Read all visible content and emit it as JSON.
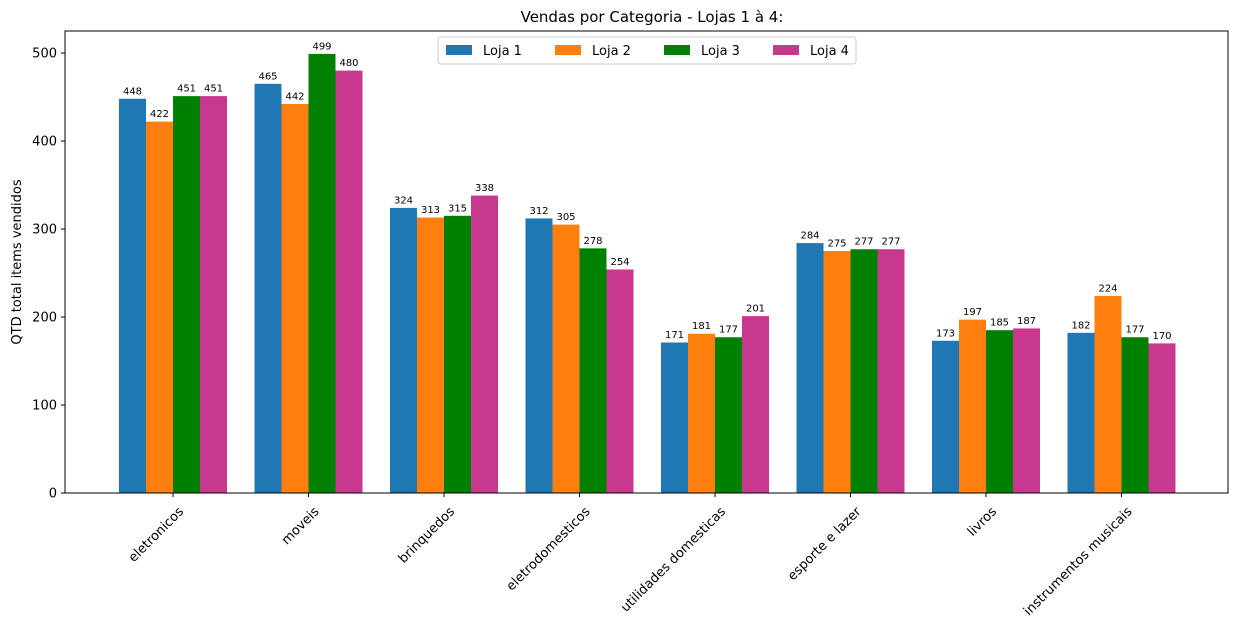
{
  "chart_data": {
    "type": "bar",
    "title": "Vendas por Categoria - Lojas 1 à 4:",
    "xlabel": "",
    "ylabel": "QTD total items vendidos",
    "ylim": [
      0,
      525
    ],
    "yticks": [
      0,
      100,
      200,
      300,
      400,
      500
    ],
    "grid": false,
    "legend_position": "top-center",
    "categories": [
      "eletronicos",
      "moveis",
      "brinquedos",
      "eletrodomesticos",
      "utilidades domesticas",
      "esporte e lazer",
      "livros",
      "instrumentos musicais"
    ],
    "series": [
      {
        "name": "Loja 1",
        "color": "#1f77b4",
        "values": [
          448,
          465,
          324,
          312,
          171,
          284,
          173,
          182
        ]
      },
      {
        "name": "Loja 2",
        "color": "#ff7f0e",
        "values": [
          422,
          442,
          313,
          305,
          181,
          275,
          197,
          224
        ]
      },
      {
        "name": "Loja 3",
        "color": "#008000",
        "values": [
          451,
          499,
          315,
          278,
          177,
          277,
          185,
          177
        ]
      },
      {
        "name": "Loja 4",
        "color": "#c9388f",
        "values": [
          451,
          480,
          338,
          254,
          201,
          277,
          187,
          170
        ]
      }
    ]
  }
}
